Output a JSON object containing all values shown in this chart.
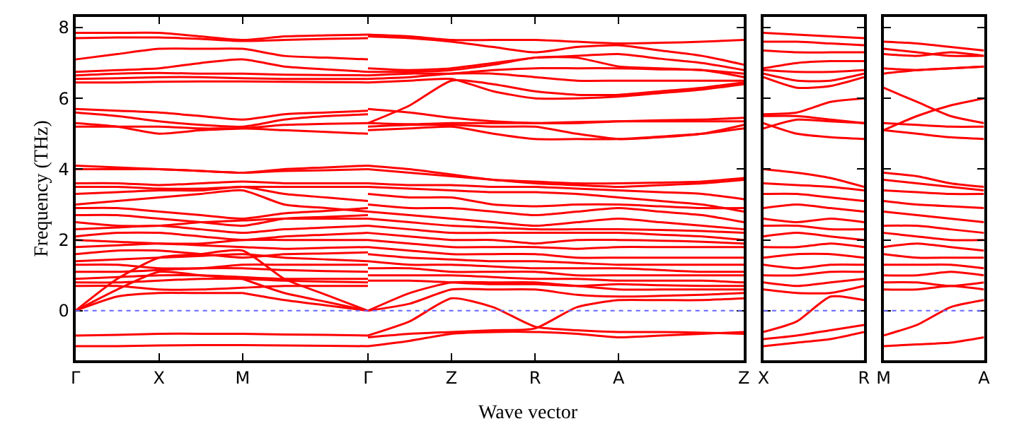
{
  "chart_data": [
    {
      "type": "line",
      "ylabel": "Frequency (THz)",
      "xlabel": "Wave vector",
      "categories": [
        "Γ",
        null,
        "X",
        null,
        "M",
        null,
        null,
        "Γ",
        null,
        "Z",
        null,
        "R",
        null,
        "A",
        null,
        null,
        "Z"
      ],
      "ylim": [
        -1.4,
        8.3
      ],
      "yticks": [
        0,
        2,
        4,
        6,
        8
      ],
      "grid": false,
      "line_style": "solid",
      "ref_lines": [
        {
          "axis": "y",
          "value": 0,
          "label": null,
          "color": "#6666ff",
          "line_style": "dotted"
        }
      ],
      "series": [
        {
          "color": "#ff0000",
          "values": [
            7.85,
            7.85,
            7.85,
            7.75,
            7.65,
            7.75,
            7.78,
            7.8,
            null,
            null,
            null,
            null,
            null,
            null,
            null,
            null,
            null
          ]
        },
        {
          "color": "#ff0000",
          "values": [
            7.7,
            7.72,
            7.72,
            7.68,
            7.62,
            7.65,
            7.68,
            7.7,
            null,
            null,
            null,
            null,
            null,
            null,
            null,
            null,
            null
          ]
        },
        {
          "color": "#ff0000",
          "values": [
            7.1,
            7.25,
            7.4,
            7.4,
            7.4,
            7.2,
            7.15,
            7.1,
            null,
            null,
            null,
            null,
            null,
            null,
            null,
            null,
            null
          ]
        },
        {
          "color": "#ff0000",
          "values": [
            6.75,
            6.8,
            6.85,
            7.0,
            7.1,
            6.9,
            6.82,
            6.75,
            null,
            null,
            null,
            null,
            null,
            null,
            null,
            null,
            null
          ]
        },
        {
          "color": "#ff0000",
          "values": [
            6.65,
            6.7,
            6.72,
            6.7,
            6.7,
            6.67,
            6.66,
            6.65,
            null,
            null,
            null,
            null,
            null,
            null,
            null,
            null,
            null
          ]
        },
        {
          "color": "#ff0000",
          "values": [
            6.45,
            6.45,
            6.47,
            6.48,
            6.48,
            6.47,
            6.46,
            6.45,
            null,
            null,
            null,
            null,
            null,
            null,
            null,
            null,
            null
          ]
        },
        {
          "color": "#ff0000",
          "values": [
            6.55,
            6.57,
            6.6,
            6.6,
            6.57,
            6.55,
            6.55,
            6.55,
            null,
            null,
            null,
            null,
            null,
            null,
            null,
            null,
            null
          ]
        },
        {
          "color": "#ff0000",
          "values": [
            5.7,
            5.65,
            5.6,
            5.5,
            5.4,
            5.55,
            5.6,
            5.65,
            null,
            null,
            null,
            null,
            null,
            null,
            null,
            null,
            null
          ]
        },
        {
          "color": "#ff0000",
          "values": [
            5.6,
            5.5,
            5.35,
            5.25,
            5.2,
            5.4,
            5.5,
            5.55,
            null,
            null,
            null,
            null,
            null,
            null,
            null,
            null,
            null
          ]
        },
        {
          "color": "#ff0000",
          "values": [
            5.3,
            5.2,
            5.0,
            5.1,
            5.15,
            5.25,
            5.28,
            5.3,
            null,
            null,
            null,
            null,
            null,
            null,
            null,
            null,
            null
          ]
        },
        {
          "color": "#ff0000",
          "values": [
            5.2,
            5.2,
            5.2,
            5.15,
            5.15,
            5.1,
            5.05,
            5.0,
            null,
            null,
            null,
            null,
            null,
            null,
            null,
            null,
            null
          ]
        },
        {
          "color": "#ff0000",
          "values": [
            4.1,
            4.05,
            4.0,
            3.95,
            3.9,
            4.0,
            4.05,
            4.1,
            null,
            null,
            null,
            null,
            null,
            null,
            null,
            null,
            null
          ]
        },
        {
          "color": "#ff0000",
          "values": [
            4.0,
            4.0,
            4.0,
            3.95,
            3.9,
            3.95,
            3.97,
            4.0,
            null,
            null,
            null,
            null,
            null,
            null,
            null,
            null,
            null
          ]
        },
        {
          "color": "#ff0000",
          "values": [
            3.6,
            3.6,
            3.55,
            3.6,
            3.65,
            3.6,
            3.6,
            3.6,
            null,
            null,
            null,
            null,
            null,
            null,
            null,
            null,
            null
          ]
        },
        {
          "color": "#ff0000",
          "values": [
            3.5,
            3.5,
            3.45,
            3.45,
            3.5,
            3.5,
            3.5,
            3.5,
            null,
            null,
            null,
            null,
            null,
            null,
            null,
            null,
            null
          ]
        },
        {
          "color": "#ff0000",
          "values": [
            3.3,
            3.35,
            3.4,
            3.4,
            3.5,
            3.3,
            3.2,
            3.1,
            null,
            null,
            null,
            null,
            null,
            null,
            null,
            null,
            null
          ]
        },
        {
          "color": "#ff0000",
          "values": [
            3.0,
            3.1,
            3.2,
            3.3,
            3.4,
            3.0,
            2.9,
            2.8,
            null,
            null,
            null,
            null,
            null,
            null,
            null,
            null,
            null
          ]
        },
        {
          "color": "#ff0000",
          "values": [
            2.9,
            2.9,
            2.8,
            2.7,
            2.6,
            2.75,
            2.82,
            2.9,
            null,
            null,
            null,
            null,
            null,
            null,
            null,
            null,
            null
          ]
        },
        {
          "color": "#ff0000",
          "values": [
            2.7,
            2.7,
            2.6,
            2.5,
            2.4,
            2.6,
            2.65,
            2.7,
            null,
            null,
            null,
            null,
            null,
            null,
            null,
            null,
            null
          ]
        },
        {
          "color": "#ff0000",
          "values": [
            2.5,
            2.4,
            2.4,
            2.5,
            2.55,
            2.6,
            2.6,
            2.6,
            null,
            null,
            null,
            null,
            null,
            null,
            null,
            null,
            null
          ]
        },
        {
          "color": "#ff0000",
          "values": [
            2.3,
            2.35,
            2.4,
            2.3,
            2.2,
            2.3,
            2.35,
            2.4,
            null,
            null,
            null,
            null,
            null,
            null,
            null,
            null,
            null
          ]
        },
        {
          "color": "#ff0000",
          "values": [
            2.1,
            2.2,
            2.2,
            2.1,
            2.0,
            2.1,
            2.15,
            2.2,
            null,
            null,
            null,
            null,
            null,
            null,
            null,
            null,
            null
          ]
        },
        {
          "color": "#ff0000",
          "values": [
            2.0,
            1.95,
            1.9,
            1.9,
            2.0,
            2.0,
            2.0,
            2.0,
            null,
            null,
            null,
            null,
            null,
            null,
            null,
            null,
            null
          ]
        },
        {
          "color": "#ff0000",
          "values": [
            1.8,
            1.85,
            1.9,
            1.85,
            1.8,
            1.75,
            1.78,
            1.8,
            null,
            null,
            null,
            null,
            null,
            null,
            null,
            null,
            null
          ]
        },
        {
          "color": "#ff0000",
          "values": [
            1.6,
            1.7,
            1.7,
            1.6,
            1.5,
            1.6,
            1.62,
            1.65,
            null,
            null,
            null,
            null,
            null,
            null,
            null,
            null,
            null
          ]
        },
        {
          "color": "#ff0000",
          "values": [
            1.4,
            1.45,
            1.5,
            1.55,
            1.6,
            1.5,
            1.45,
            1.4,
            null,
            null,
            null,
            null,
            null,
            null,
            null,
            null,
            null
          ]
        },
        {
          "color": "#ff0000",
          "values": [
            1.3,
            1.3,
            1.2,
            1.2,
            1.3,
            1.3,
            1.3,
            1.3,
            null,
            null,
            null,
            null,
            null,
            null,
            null,
            null,
            null
          ]
        },
        {
          "color": "#ff0000",
          "values": [
            1.1,
            1.1,
            1.15,
            1.2,
            1.2,
            1.15,
            1.12,
            1.1,
            null,
            null,
            null,
            null,
            null,
            null,
            null,
            null,
            null
          ]
        },
        {
          "color": "#ff0000",
          "values": [
            0.9,
            0.95,
            1.0,
            1.0,
            0.95,
            0.9,
            0.9,
            0.9,
            null,
            null,
            null,
            null,
            null,
            null,
            null,
            null,
            null
          ]
        },
        {
          "color": "#ff0000",
          "values": [
            0.8,
            0.8,
            0.85,
            0.9,
            0.9,
            0.85,
            0.82,
            0.8,
            null,
            null,
            null,
            null,
            null,
            null,
            null,
            null,
            null
          ]
        },
        {
          "color": "#ff0000",
          "values": [
            0.7,
            0.7,
            0.6,
            0.6,
            0.65,
            0.7,
            0.7,
            0.7,
            null,
            null,
            null,
            null,
            null,
            null,
            null,
            null,
            null
          ]
        },
        {
          "color": "#ff0000",
          "values": [
            0,
            0.9,
            1.5,
            1.6,
            1.7,
            0.9,
            0.45,
            0,
            null,
            null,
            null,
            null,
            null,
            null,
            null,
            null,
            null
          ]
        },
        {
          "color": "#ff0000",
          "values": [
            0,
            0.6,
            1.1,
            1.0,
            0.9,
            null,
            null,
            null,
            null,
            null,
            null,
            null,
            null,
            null,
            null,
            null,
            null
          ]
        },
        {
          "color": "#ff0000",
          "values": [
            null,
            null,
            null,
            null,
            0.9,
            0.5,
            0.25,
            0,
            null,
            null,
            null,
            null,
            null,
            null,
            null,
            null,
            null
          ]
        },
        {
          "color": "#ff0000",
          "values": [
            0,
            0.4,
            0.5,
            0.5,
            0.5,
            null,
            null,
            null,
            null,
            null,
            null,
            null,
            null,
            null,
            null,
            null,
            null
          ]
        },
        {
          "color": "#ff0000",
          "values": [
            null,
            null,
            null,
            null,
            0.5,
            0.3,
            0.15,
            0,
            null,
            null,
            null,
            null,
            null,
            null,
            null,
            null,
            null
          ]
        },
        {
          "color": "#ff0000",
          "values": [
            -0.7,
            -0.68,
            -0.65,
            -0.65,
            -0.65,
            -0.67,
            -0.68,
            -0.7,
            null,
            null,
            null,
            null,
            null,
            null,
            null,
            null,
            null
          ]
        },
        {
          "color": "#ff0000",
          "values": [
            -1.0,
            -1.0,
            -0.98,
            -0.97,
            -0.97,
            -0.98,
            -0.99,
            -1.0,
            null,
            null,
            null,
            null,
            null,
            null,
            null,
            null,
            null
          ]
        },
        {
          "color": "#ff0000",
          "values": [
            null,
            null,
            null,
            null,
            null,
            null,
            null,
            7.8,
            7.75,
            7.65,
            7.65,
            7.65,
            7.6,
            7.55,
            7.57,
            7.6,
            7.65
          ]
        },
        {
          "color": "#ff0000",
          "values": [
            null,
            null,
            null,
            null,
            null,
            null,
            null,
            7.75,
            7.7,
            7.6,
            7.45,
            7.3,
            7.45,
            7.5,
            7.35,
            7.2,
            6.95
          ]
        },
        {
          "color": "#ff0000",
          "values": [
            null,
            null,
            null,
            null,
            null,
            null,
            null,
            6.85,
            6.8,
            6.85,
            7.0,
            7.15,
            7.2,
            7.25,
            7.12,
            7.0,
            6.8
          ]
        },
        {
          "color": "#ff0000",
          "values": [
            null,
            null,
            null,
            null,
            null,
            null,
            null,
            6.75,
            6.75,
            6.8,
            6.95,
            7.15,
            7.15,
            6.9,
            6.85,
            6.8,
            6.7
          ]
        },
        {
          "color": "#ff0000",
          "values": [
            null,
            null,
            null,
            null,
            null,
            null,
            null,
            6.65,
            6.7,
            6.7,
            6.8,
            6.85,
            6.85,
            6.85,
            6.82,
            6.8,
            6.6
          ]
        },
        {
          "color": "#ff0000",
          "values": [
            null,
            null,
            null,
            null,
            null,
            null,
            null,
            6.55,
            6.6,
            6.7,
            6.7,
            6.6,
            6.5,
            6.5,
            6.5,
            6.5,
            6.5
          ]
        },
        {
          "color": "#ff0000",
          "values": [
            null,
            null,
            null,
            null,
            null,
            null,
            null,
            5.3,
            5.8,
            6.5,
            6.4,
            6.2,
            6.1,
            6.1,
            6.2,
            6.3,
            6.45
          ]
        },
        {
          "color": "#ff0000",
          "values": [
            null,
            null,
            null,
            null,
            null,
            null,
            null,
            6.45,
            6.5,
            6.55,
            6.2,
            6.0,
            6.0,
            6.05,
            6.15,
            6.25,
            6.4
          ]
        },
        {
          "color": "#ff0000",
          "values": [
            null,
            null,
            null,
            null,
            null,
            null,
            null,
            5.7,
            5.6,
            5.45,
            5.35,
            5.3,
            5.3,
            5.35,
            5.38,
            5.4,
            5.45
          ]
        },
        {
          "color": "#ff0000",
          "values": [
            null,
            null,
            null,
            null,
            null,
            null,
            null,
            5.3,
            5.27,
            5.3,
            5.3,
            5.3,
            5.33,
            5.35,
            5.35,
            5.35,
            5.35
          ]
        },
        {
          "color": "#ff0000",
          "values": [
            null,
            null,
            null,
            null,
            null,
            null,
            null,
            5.2,
            5.25,
            5.25,
            5.2,
            5.2,
            5.0,
            4.85,
            4.9,
            5.0,
            5.25
          ]
        },
        {
          "color": "#ff0000",
          "values": [
            null,
            null,
            null,
            null,
            null,
            null,
            null,
            5.1,
            5.15,
            5.2,
            5.0,
            4.85,
            4.85,
            4.85,
            4.92,
            5.0,
            5.15
          ]
        },
        {
          "color": "#ff0000",
          "values": [
            null,
            null,
            null,
            null,
            null,
            null,
            null,
            4.1,
            4.0,
            3.85,
            3.7,
            3.65,
            3.6,
            3.6,
            3.62,
            3.65,
            3.75
          ]
        },
        {
          "color": "#ff0000",
          "values": [
            null,
            null,
            null,
            null,
            null,
            null,
            null,
            4.0,
            3.9,
            3.8,
            3.7,
            3.6,
            3.55,
            3.5,
            3.55,
            3.6,
            3.7
          ]
        },
        {
          "color": "#ff0000",
          "values": [
            null,
            null,
            null,
            null,
            null,
            null,
            null,
            3.6,
            3.55,
            3.55,
            3.5,
            3.5,
            3.45,
            3.4,
            3.35,
            3.3,
            3.15
          ]
        },
        {
          "color": "#ff0000",
          "values": [
            null,
            null,
            null,
            null,
            null,
            null,
            null,
            3.5,
            3.45,
            3.4,
            3.35,
            3.35,
            3.3,
            3.2,
            3.1,
            3.0,
            2.8
          ]
        },
        {
          "color": "#ff0000",
          "values": [
            null,
            null,
            null,
            null,
            null,
            null,
            null,
            3.3,
            3.2,
            3.2,
            3.0,
            2.95,
            3.0,
            3.0,
            2.95,
            2.9,
            2.9
          ]
        },
        {
          "color": "#ff0000",
          "values": [
            null,
            null,
            null,
            null,
            null,
            null,
            null,
            3.0,
            2.9,
            2.9,
            2.8,
            2.7,
            2.8,
            2.9,
            2.8,
            2.7,
            2.5
          ]
        },
        {
          "color": "#ff0000",
          "values": [
            null,
            null,
            null,
            null,
            null,
            null,
            null,
            2.8,
            2.7,
            2.6,
            2.5,
            2.4,
            2.5,
            2.6,
            2.5,
            2.4,
            2.3
          ]
        },
        {
          "color": "#ff0000",
          "values": [
            null,
            null,
            null,
            null,
            null,
            null,
            null,
            2.6,
            2.5,
            2.4,
            2.35,
            2.3,
            2.3,
            2.3,
            2.28,
            2.25,
            2.2
          ]
        },
        {
          "color": "#ff0000",
          "values": [
            null,
            null,
            null,
            null,
            null,
            null,
            null,
            2.4,
            2.3,
            2.2,
            2.2,
            2.2,
            2.2,
            2.2,
            2.15,
            2.1,
            2.0
          ]
        },
        {
          "color": "#ff0000",
          "values": [
            null,
            null,
            null,
            null,
            null,
            null,
            null,
            2.2,
            2.1,
            2.0,
            2.0,
            1.9,
            2.0,
            2.0,
            1.98,
            1.95,
            1.9
          ]
        },
        {
          "color": "#ff0000",
          "values": [
            null,
            null,
            null,
            null,
            null,
            null,
            null,
            2.0,
            1.9,
            1.8,
            1.8,
            1.8,
            1.75,
            1.8,
            1.8,
            1.8,
            1.8
          ]
        },
        {
          "color": "#ff0000",
          "values": [
            null,
            null,
            null,
            null,
            null,
            null,
            null,
            1.8,
            1.7,
            1.6,
            1.6,
            1.6,
            1.5,
            1.5,
            1.5,
            1.5,
            1.5
          ]
        },
        {
          "color": "#ff0000",
          "values": [
            null,
            null,
            null,
            null,
            null,
            null,
            null,
            1.6,
            1.5,
            1.45,
            1.4,
            1.4,
            1.35,
            1.3,
            1.3,
            1.3,
            1.3
          ]
        },
        {
          "color": "#ff0000",
          "values": [
            null,
            null,
            null,
            null,
            null,
            null,
            null,
            1.4,
            1.3,
            1.3,
            1.25,
            1.2,
            1.2,
            1.2,
            1.15,
            1.1,
            1.1
          ]
        },
        {
          "color": "#ff0000",
          "values": [
            null,
            null,
            null,
            null,
            null,
            null,
            null,
            1.2,
            1.2,
            1.1,
            1.1,
            1.1,
            1.0,
            1.0,
            1.0,
            1.0,
            1.0
          ]
        },
        {
          "color": "#ff0000",
          "values": [
            null,
            null,
            null,
            null,
            null,
            null,
            null,
            1.0,
            1.0,
            1.0,
            0.95,
            0.9,
            0.9,
            0.85,
            0.85,
            0.85,
            0.8
          ]
        },
        {
          "color": "#ff0000",
          "values": [
            null,
            null,
            null,
            null,
            null,
            null,
            null,
            0.85,
            0.85,
            0.8,
            0.75,
            0.75,
            0.7,
            0.75,
            0.72,
            0.7,
            0.7
          ]
        },
        {
          "color": "#ff0000",
          "values": [
            null,
            null,
            null,
            null,
            null,
            null,
            null,
            0,
            0.5,
            0.8,
            0.8,
            0.8,
            0.7,
            0.6,
            0.6,
            0.6,
            0.6
          ]
        },
        {
          "color": "#ff0000",
          "values": [
            null,
            null,
            null,
            null,
            null,
            null,
            null,
            0,
            0.2,
            0.6,
            0.6,
            0.6,
            0.45,
            0.4,
            0.42,
            0.45,
            0.5
          ]
        },
        {
          "color": "#ff0000",
          "values": [
            null,
            null,
            null,
            null,
            null,
            null,
            null,
            -0.7,
            -0.3,
            0.35,
            0.1,
            -0.45,
            -0.55,
            -0.6,
            -0.6,
            -0.62,
            -0.65
          ]
        },
        {
          "color": "#ff0000",
          "values": [
            null,
            null,
            null,
            null,
            null,
            null,
            null,
            -0.75,
            -0.65,
            -0.6,
            -0.55,
            -0.5,
            0.1,
            0.3,
            0.3,
            0.3,
            0.35
          ]
        },
        {
          "color": "#ff0000",
          "values": [
            null,
            null,
            null,
            null,
            null,
            null,
            null,
            -1.0,
            -0.85,
            -0.65,
            -0.6,
            -0.6,
            -0.65,
            -0.75,
            -0.7,
            -0.65,
            -0.6
          ]
        }
      ]
    },
    {
      "type": "line",
      "categories": [
        "X",
        null,
        null,
        "R"
      ],
      "ylim": [
        -1.4,
        8.3
      ],
      "yticks": [
        0,
        2,
        4,
        6,
        8
      ],
      "tick_labels": "x",
      "grid": false,
      "line_style": "solid",
      "ref_lines": [
        {
          "axis": "y",
          "value": 0,
          "label": null,
          "color": "#6666ff",
          "line_style": "dotted"
        }
      ],
      "series": [
        {
          "color": "#ff0000",
          "values": [
            7.85,
            7.8,
            7.75,
            7.7
          ]
        },
        {
          "color": "#ff0000",
          "values": [
            7.6,
            7.6,
            7.55,
            7.5
          ]
        },
        {
          "color": "#ff0000",
          "values": [
            7.35,
            7.3,
            7.3,
            7.3
          ]
        },
        {
          "color": "#ff0000",
          "values": [
            6.85,
            7.0,
            7.05,
            7.05
          ]
        },
        {
          "color": "#ff0000",
          "values": [
            6.8,
            6.75,
            6.75,
            6.8
          ]
        },
        {
          "color": "#ff0000",
          "values": [
            6.7,
            6.5,
            6.5,
            6.7
          ]
        },
        {
          "color": "#ff0000",
          "values": [
            6.6,
            6.3,
            6.35,
            6.6
          ]
        },
        {
          "color": "#ff0000",
          "values": [
            5.55,
            5.6,
            5.9,
            6.0
          ]
        },
        {
          "color": "#ff0000",
          "values": [
            5.5,
            5.5,
            5.4,
            5.3
          ]
        },
        {
          "color": "#ff0000",
          "values": [
            5.15,
            5.4,
            5.35,
            5.3
          ]
        },
        {
          "color": "#ff0000",
          "values": [
            5.3,
            5.0,
            4.9,
            4.85
          ]
        },
        {
          "color": "#ff0000",
          "values": [
            4.0,
            3.9,
            3.75,
            3.5
          ]
        },
        {
          "color": "#ff0000",
          "values": [
            3.6,
            3.55,
            3.5,
            3.4
          ]
        },
        {
          "color": "#ff0000",
          "values": [
            3.3,
            3.3,
            3.2,
            3.1
          ]
        },
        {
          "color": "#ff0000",
          "values": [
            2.9,
            3.0,
            2.9,
            2.8
          ]
        },
        {
          "color": "#ff0000",
          "values": [
            2.6,
            2.5,
            2.6,
            2.5
          ]
        },
        {
          "color": "#ff0000",
          "values": [
            2.4,
            2.4,
            2.3,
            2.3
          ]
        },
        {
          "color": "#ff0000",
          "values": [
            2.1,
            2.2,
            2.1,
            2.0
          ]
        },
        {
          "color": "#ff0000",
          "values": [
            1.8,
            1.8,
            1.9,
            1.8
          ]
        },
        {
          "color": "#ff0000",
          "values": [
            1.5,
            1.6,
            1.6,
            1.5
          ]
        },
        {
          "color": "#ff0000",
          "values": [
            1.3,
            1.2,
            1.3,
            1.3
          ]
        },
        {
          "color": "#ff0000",
          "values": [
            1.0,
            1.0,
            1.1,
            1.1
          ]
        },
        {
          "color": "#ff0000",
          "values": [
            0.8,
            0.7,
            0.8,
            0.9
          ]
        },
        {
          "color": "#ff0000",
          "values": [
            0.6,
            0.5,
            0.5,
            0.7
          ]
        },
        {
          "color": "#ff0000",
          "values": [
            -0.6,
            -0.3,
            0.4,
            0.3
          ]
        },
        {
          "color": "#ff0000",
          "values": [
            -0.8,
            -0.7,
            -0.55,
            -0.4
          ]
        },
        {
          "color": "#ff0000",
          "values": [
            -1.0,
            -0.9,
            -0.8,
            -0.6
          ]
        }
      ]
    },
    {
      "type": "line",
      "categories": [
        "M",
        null,
        null,
        "A"
      ],
      "ylim": [
        -1.4,
        8.3
      ],
      "yticks": [
        0,
        2,
        4,
        6,
        8
      ],
      "tick_labels": "x",
      "grid": false,
      "line_style": "solid",
      "ref_lines": [
        {
          "axis": "y",
          "value": 0,
          "label": null,
          "color": "#6666ff",
          "line_style": "dotted"
        }
      ],
      "series": [
        {
          "color": "#ff0000",
          "values": [
            7.6,
            7.55,
            7.45,
            7.35
          ]
        },
        {
          "color": "#ff0000",
          "values": [
            7.4,
            7.3,
            7.2,
            7.2
          ]
        },
        {
          "color": "#ff0000",
          "values": [
            7.25,
            7.2,
            7.3,
            7.2
          ]
        },
        {
          "color": "#ff0000",
          "values": [
            6.85,
            6.8,
            6.85,
            6.9
          ]
        },
        {
          "color": "#ff0000",
          "values": [
            6.7,
            6.8,
            6.85,
            6.9
          ]
        },
        {
          "color": "#ff0000",
          "values": [
            6.3,
            5.9,
            5.5,
            5.3
          ]
        },
        {
          "color": "#ff0000",
          "values": [
            5.1,
            5.5,
            5.8,
            6.0
          ]
        },
        {
          "color": "#ff0000",
          "values": [
            5.3,
            5.25,
            5.2,
            5.2
          ]
        },
        {
          "color": "#ff0000",
          "values": [
            5.1,
            5.0,
            4.9,
            4.85
          ]
        },
        {
          "color": "#ff0000",
          "values": [
            3.9,
            3.8,
            3.6,
            3.5
          ]
        },
        {
          "color": "#ff0000",
          "values": [
            3.7,
            3.6,
            3.5,
            3.4
          ]
        },
        {
          "color": "#ff0000",
          "values": [
            3.4,
            3.35,
            3.3,
            3.3
          ]
        },
        {
          "color": "#ff0000",
          "values": [
            3.1,
            3.0,
            2.95,
            2.9
          ]
        },
        {
          "color": "#ff0000",
          "values": [
            2.8,
            2.7,
            2.6,
            2.5
          ]
        },
        {
          "color": "#ff0000",
          "values": [
            2.4,
            2.4,
            2.3,
            2.2
          ]
        },
        {
          "color": "#ff0000",
          "values": [
            2.2,
            2.1,
            2.0,
            2.0
          ]
        },
        {
          "color": "#ff0000",
          "values": [
            1.8,
            1.9,
            1.8,
            1.7
          ]
        },
        {
          "color": "#ff0000",
          "values": [
            1.6,
            1.5,
            1.5,
            1.5
          ]
        },
        {
          "color": "#ff0000",
          "values": [
            1.3,
            1.3,
            1.3,
            1.2
          ]
        },
        {
          "color": "#ff0000",
          "values": [
            1.0,
            1.0,
            1.1,
            1.0
          ]
        },
        {
          "color": "#ff0000",
          "values": [
            0.8,
            0.8,
            0.7,
            0.8
          ]
        },
        {
          "color": "#ff0000",
          "values": [
            0.6,
            0.6,
            0.7,
            0.6
          ]
        },
        {
          "color": "#ff0000",
          "values": [
            -0.7,
            -0.4,
            0.1,
            0.3
          ]
        },
        {
          "color": "#ff0000",
          "values": [
            -1.0,
            -0.95,
            -0.9,
            -0.75
          ]
        }
      ]
    }
  ]
}
